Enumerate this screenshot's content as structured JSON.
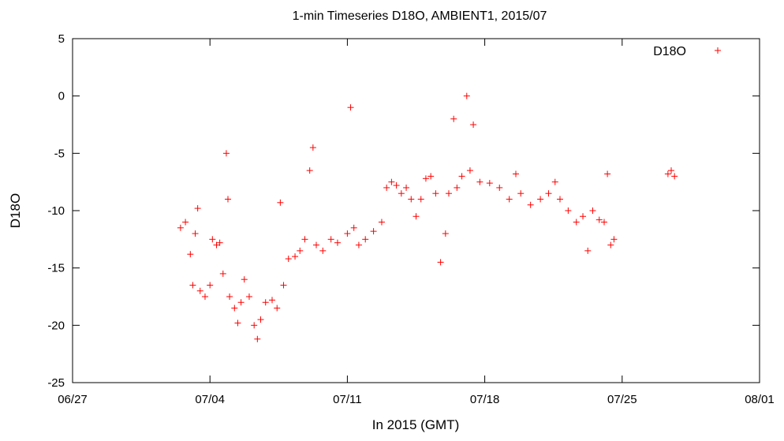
{
  "chart_data": {
    "type": "scatter",
    "title": "1-min Timeseries D18O, AMBIENT1, 2015/07",
    "xlabel": "In 2015 (GMT)",
    "ylabel": "D18O",
    "xlim": [
      "2015-06-27",
      "2015-08-01"
    ],
    "ylim": [
      -25,
      5
    ],
    "x_ticks": [
      {
        "date": "2015-06-27",
        "label": "06/27"
      },
      {
        "date": "2015-07-04",
        "label": "07/04"
      },
      {
        "date": "2015-07-11",
        "label": "07/11"
      },
      {
        "date": "2015-07-18",
        "label": "07/18"
      },
      {
        "date": "2015-07-25",
        "label": "07/25"
      },
      {
        "date": "2015-08-01",
        "label": "08/01"
      }
    ],
    "y_ticks": [
      5,
      0,
      -5,
      -10,
      -15,
      -20,
      -25
    ],
    "grid": false,
    "legend_position": "top-right",
    "marker": "plus",
    "series": [
      {
        "name": "D18O",
        "color": "#ff0000",
        "points": [
          [
            "2015-07-02T12:00",
            -11.5
          ],
          [
            "2015-07-02T18:00",
            -11.0
          ],
          [
            "2015-07-03T00:00",
            -13.8
          ],
          [
            "2015-07-03T03:00",
            -16.5
          ],
          [
            "2015-07-03T06:00",
            -12.0
          ],
          [
            "2015-07-03T09:00",
            -9.8
          ],
          [
            "2015-07-03T12:00",
            -17.0
          ],
          [
            "2015-07-03T18:00",
            -17.5
          ],
          [
            "2015-07-04T00:00",
            -16.5
          ],
          [
            "2015-07-04T03:00",
            -12.5
          ],
          [
            "2015-07-04T08:00",
            -13.0
          ],
          [
            "2015-07-04T12:00",
            -12.8
          ],
          [
            "2015-07-04T16:00",
            -15.5
          ],
          [
            "2015-07-04T20:00",
            -5.0
          ],
          [
            "2015-07-04T22:00",
            -9.0
          ],
          [
            "2015-07-05T00:00",
            -17.5
          ],
          [
            "2015-07-05T06:00",
            -18.5
          ],
          [
            "2015-07-05T10:00",
            -19.8
          ],
          [
            "2015-07-05T14:00",
            -18.0
          ],
          [
            "2015-07-05T18:00",
            -16.0
          ],
          [
            "2015-07-06T00:00",
            -17.5
          ],
          [
            "2015-07-06T06:00",
            -20.0
          ],
          [
            "2015-07-06T10:00",
            -21.2
          ],
          [
            "2015-07-06T14:00",
            -19.5
          ],
          [
            "2015-07-06T20:00",
            -18.0
          ],
          [
            "2015-07-07T04:00",
            -17.8
          ],
          [
            "2015-07-07T10:00",
            -18.5
          ],
          [
            "2015-07-07T14:00",
            -9.3
          ],
          [
            "2015-07-07T18:00",
            -16.5
          ],
          [
            "2015-07-08T00:00",
            -14.2
          ],
          [
            "2015-07-08T08:00",
            -14.0
          ],
          [
            "2015-07-08T14:00",
            -13.5
          ],
          [
            "2015-07-08T20:00",
            -12.5
          ],
          [
            "2015-07-09T02:00",
            -6.5
          ],
          [
            "2015-07-09T06:00",
            -4.5
          ],
          [
            "2015-07-09T10:00",
            -13.0
          ],
          [
            "2015-07-09T18:00",
            -13.5
          ],
          [
            "2015-07-10T04:00",
            -12.5
          ],
          [
            "2015-07-10T12:00",
            -12.8
          ],
          [
            "2015-07-11T00:00",
            -12.0
          ],
          [
            "2015-07-11T04:00",
            -1.0
          ],
          [
            "2015-07-11T08:00",
            -11.5
          ],
          [
            "2015-07-11T14:00",
            -13.0
          ],
          [
            "2015-07-11T22:00",
            -12.5
          ],
          [
            "2015-07-12T08:00",
            -11.8
          ],
          [
            "2015-07-12T18:00",
            -11.0
          ],
          [
            "2015-07-13T00:00",
            -8.0
          ],
          [
            "2015-07-13T06:00",
            -7.5
          ],
          [
            "2015-07-13T12:00",
            -7.8
          ],
          [
            "2015-07-13T18:00",
            -8.5
          ],
          [
            "2015-07-14T00:00",
            -8.0
          ],
          [
            "2015-07-14T06:00",
            -9.0
          ],
          [
            "2015-07-14T12:00",
            -10.5
          ],
          [
            "2015-07-14T18:00",
            -9.0
          ],
          [
            "2015-07-15T00:00",
            -7.2
          ],
          [
            "2015-07-15T06:00",
            -7.0
          ],
          [
            "2015-07-15T12:00",
            -8.5
          ],
          [
            "2015-07-15T18:00",
            -14.5
          ],
          [
            "2015-07-16T00:00",
            -12.0
          ],
          [
            "2015-07-16T04:00",
            -8.5
          ],
          [
            "2015-07-16T10:00",
            -2.0
          ],
          [
            "2015-07-16T14:00",
            -8.0
          ],
          [
            "2015-07-16T20:00",
            -7.0
          ],
          [
            "2015-07-17T02:00",
            0.0
          ],
          [
            "2015-07-17T06:00",
            -6.5
          ],
          [
            "2015-07-17T10:00",
            -2.5
          ],
          [
            "2015-07-17T18:00",
            -7.5
          ],
          [
            "2015-07-18T06:00",
            -7.6
          ],
          [
            "2015-07-18T18:00",
            -8.0
          ],
          [
            "2015-07-19T06:00",
            -9.0
          ],
          [
            "2015-07-19T14:00",
            -6.8
          ],
          [
            "2015-07-19T20:00",
            -8.5
          ],
          [
            "2015-07-20T08:00",
            -9.5
          ],
          [
            "2015-07-20T20:00",
            -9.0
          ],
          [
            "2015-07-21T06:00",
            -8.5
          ],
          [
            "2015-07-21T14:00",
            -7.5
          ],
          [
            "2015-07-21T20:00",
            -9.0
          ],
          [
            "2015-07-22T06:00",
            -10.0
          ],
          [
            "2015-07-22T16:00",
            -11.0
          ],
          [
            "2015-07-23T00:00",
            -10.5
          ],
          [
            "2015-07-23T06:00",
            -13.5
          ],
          [
            "2015-07-23T12:00",
            -10.0
          ],
          [
            "2015-07-23T20:00",
            -10.8
          ],
          [
            "2015-07-24T02:00",
            -11.0
          ],
          [
            "2015-07-24T06:00",
            -6.8
          ],
          [
            "2015-07-24T10:00",
            -13.0
          ],
          [
            "2015-07-24T14:00",
            -12.5
          ],
          [
            "2015-07-27T08:00",
            -6.8
          ],
          [
            "2015-07-27T12:00",
            -6.5
          ],
          [
            "2015-07-27T16:00",
            -7.0
          ]
        ]
      }
    ]
  }
}
